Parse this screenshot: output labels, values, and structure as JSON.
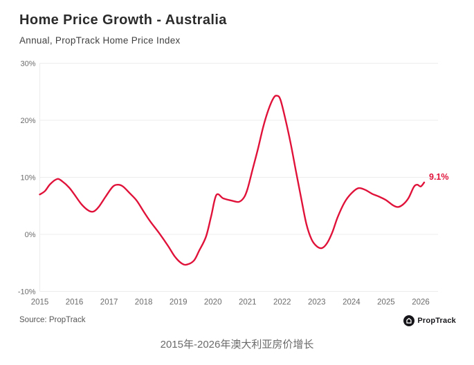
{
  "page": {
    "title": "Home Price Growth - Australia",
    "subtitle": "Annual, PropTrack Home Price Index",
    "source": "Source: PropTrack",
    "logo_text": "PropTrack",
    "caption": "2015年-2026年澳大利亚房价增长"
  },
  "colors": {
    "line": "#e0123a",
    "title_text": "#2b2b2b",
    "subtitle_text": "#3f3f3f",
    "axis_text": "#6b6b6b",
    "gridline": "#ececec",
    "caption_text": "#6a6a6a",
    "logo_black": "#16161a"
  },
  "chart_data": {
    "type": "line",
    "title": "Home Price Growth - Australia",
    "subtitle": "Annual, PropTrack Home Price Index",
    "xlabel": "",
    "ylabel": "",
    "xlim": [
      2015,
      2026.5
    ],
    "ylim": [
      -10,
      30
    ],
    "grid": "horizontal",
    "legend": "none",
    "y_ticks": [
      {
        "value": 30,
        "label": "30%"
      },
      {
        "value": 20,
        "label": "20%"
      },
      {
        "value": 10,
        "label": "10%"
      },
      {
        "value": 0,
        "label": "0%"
      },
      {
        "value": -10,
        "label": "-10%"
      }
    ],
    "x_ticks": [
      {
        "value": 2015,
        "label": "2015"
      },
      {
        "value": 2016,
        "label": "2016"
      },
      {
        "value": 2017,
        "label": "2017"
      },
      {
        "value": 2018,
        "label": "2018"
      },
      {
        "value": 2019,
        "label": "2019"
      },
      {
        "value": 2020,
        "label": "2020"
      },
      {
        "value": 2021,
        "label": "2021"
      },
      {
        "value": 2022,
        "label": "2022"
      },
      {
        "value": 2023,
        "label": "2023"
      },
      {
        "value": 2024,
        "label": "2024"
      },
      {
        "value": 2025,
        "label": "2025"
      },
      {
        "value": 2026,
        "label": "2026"
      }
    ],
    "end_label": "9.1%",
    "series": [
      {
        "name": "Annual home price growth (%)",
        "color": "#e0123a",
        "points": [
          [
            2015.0,
            7.0
          ],
          [
            2015.15,
            7.6
          ],
          [
            2015.3,
            8.8
          ],
          [
            2015.5,
            9.7
          ],
          [
            2015.65,
            9.3
          ],
          [
            2015.85,
            8.2
          ],
          [
            2016.0,
            7.0
          ],
          [
            2016.2,
            5.3
          ],
          [
            2016.4,
            4.2
          ],
          [
            2016.55,
            4.0
          ],
          [
            2016.7,
            4.8
          ],
          [
            2016.9,
            6.6
          ],
          [
            2017.1,
            8.3
          ],
          [
            2017.25,
            8.7
          ],
          [
            2017.4,
            8.4
          ],
          [
            2017.6,
            7.2
          ],
          [
            2017.8,
            5.9
          ],
          [
            2018.0,
            4.0
          ],
          [
            2018.2,
            2.2
          ],
          [
            2018.45,
            0.2
          ],
          [
            2018.7,
            -2.0
          ],
          [
            2018.9,
            -3.9
          ],
          [
            2019.1,
            -5.1
          ],
          [
            2019.25,
            -5.3
          ],
          [
            2019.45,
            -4.6
          ],
          [
            2019.6,
            -2.9
          ],
          [
            2019.8,
            -0.4
          ],
          [
            2019.95,
            3.2
          ],
          [
            2020.1,
            6.9
          ],
          [
            2020.3,
            6.3
          ],
          [
            2020.55,
            5.9
          ],
          [
            2020.75,
            5.7
          ],
          [
            2020.9,
            6.5
          ],
          [
            2021.0,
            8.0
          ],
          [
            2021.15,
            11.5
          ],
          [
            2021.3,
            15.0
          ],
          [
            2021.45,
            18.8
          ],
          [
            2021.6,
            21.8
          ],
          [
            2021.75,
            23.9
          ],
          [
            2021.85,
            24.3
          ],
          [
            2021.95,
            23.6
          ],
          [
            2022.1,
            20.0
          ],
          [
            2022.25,
            15.8
          ],
          [
            2022.4,
            11.0
          ],
          [
            2022.55,
            6.3
          ],
          [
            2022.7,
            1.8
          ],
          [
            2022.85,
            -0.9
          ],
          [
            2023.0,
            -2.1
          ],
          [
            2023.15,
            -2.4
          ],
          [
            2023.3,
            -1.5
          ],
          [
            2023.45,
            0.4
          ],
          [
            2023.6,
            3.0
          ],
          [
            2023.8,
            5.6
          ],
          [
            2024.0,
            7.2
          ],
          [
            2024.2,
            8.1
          ],
          [
            2024.4,
            7.8
          ],
          [
            2024.6,
            7.1
          ],
          [
            2024.8,
            6.6
          ],
          [
            2025.0,
            6.0
          ],
          [
            2025.2,
            5.1
          ],
          [
            2025.35,
            4.8
          ],
          [
            2025.5,
            5.3
          ],
          [
            2025.65,
            6.4
          ],
          [
            2025.8,
            8.3
          ],
          [
            2025.9,
            8.7
          ],
          [
            2026.0,
            8.4
          ],
          [
            2026.1,
            9.1
          ]
        ]
      }
    ]
  }
}
